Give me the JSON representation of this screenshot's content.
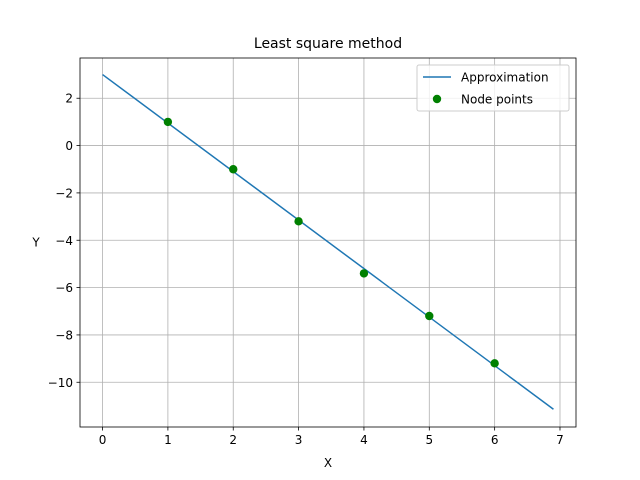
{
  "chart_data": {
    "type": "line",
    "title": "Least square method",
    "xlabel": "X",
    "ylabel": "Y",
    "xlim": [
      -0.345,
      7.245
    ],
    "ylim": [
      -11.89,
      3.7
    ],
    "xticks": [
      0,
      1,
      2,
      3,
      4,
      5,
      6,
      7
    ],
    "yticks": [
      2,
      0,
      -2,
      -4,
      -6,
      -8,
      -10
    ],
    "grid": true,
    "legend": {
      "position": "top-right"
    },
    "series": [
      {
        "name": "Approximation",
        "kind": "line",
        "color": "#1f77b4",
        "x": [
          0,
          6.9
        ],
        "y": [
          3.0,
          -11.14
        ]
      },
      {
        "name": "Node points",
        "kind": "scatter",
        "color": "#008000",
        "x": [
          1,
          2,
          3,
          4,
          5,
          6
        ],
        "y": [
          1.0,
          -1.0,
          -3.2,
          -5.4,
          -7.2,
          -9.2
        ]
      }
    ]
  }
}
